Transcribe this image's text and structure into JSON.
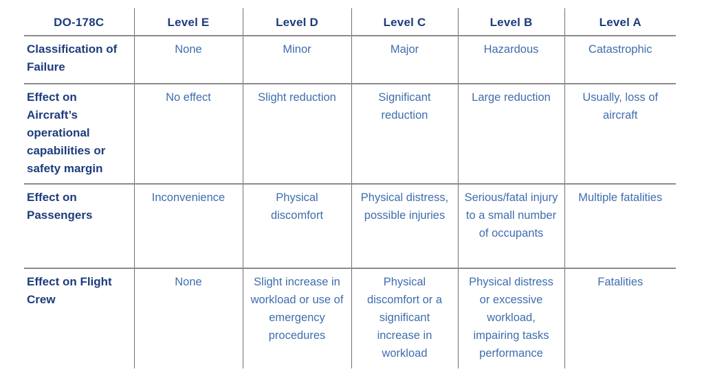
{
  "colors": {
    "header_navy": "#1d3c7c",
    "body_blue": "#3e6dad",
    "grid_gray": "#8a8a8a"
  },
  "table": {
    "header": [
      "DO-178C",
      "Level E",
      "Level D",
      "Level C",
      "Level B",
      "Level A"
    ],
    "rows": [
      {
        "label": "Classification of Failure",
        "cells": [
          "None",
          "Minor",
          "Major",
          "Hazardous",
          "Catastrophic"
        ]
      },
      {
        "label": "Effect on Aircraft’s operational capabilities or safety margin",
        "cells": [
          "No effect",
          "Slight reduction",
          "Significant reduction",
          "Large reduction",
          "Usually, loss of aircraft"
        ]
      },
      {
        "label": "Effect on Passengers",
        "cells": [
          "Inconvenience",
          "Physical discomfort",
          "Physical distress, possible injuries",
          "Serious/fatal injury to a small number of occupants",
          "Multiple fatalities"
        ]
      },
      {
        "label": "Effect on Flight Crew",
        "cells": [
          "None",
          "Slight increase in workload or use of emergency procedures",
          "Physical discomfort or a significant increase in workload",
          "Physical distress or excessive workload, impairing tasks performance",
          "Fatalities"
        ]
      }
    ]
  }
}
